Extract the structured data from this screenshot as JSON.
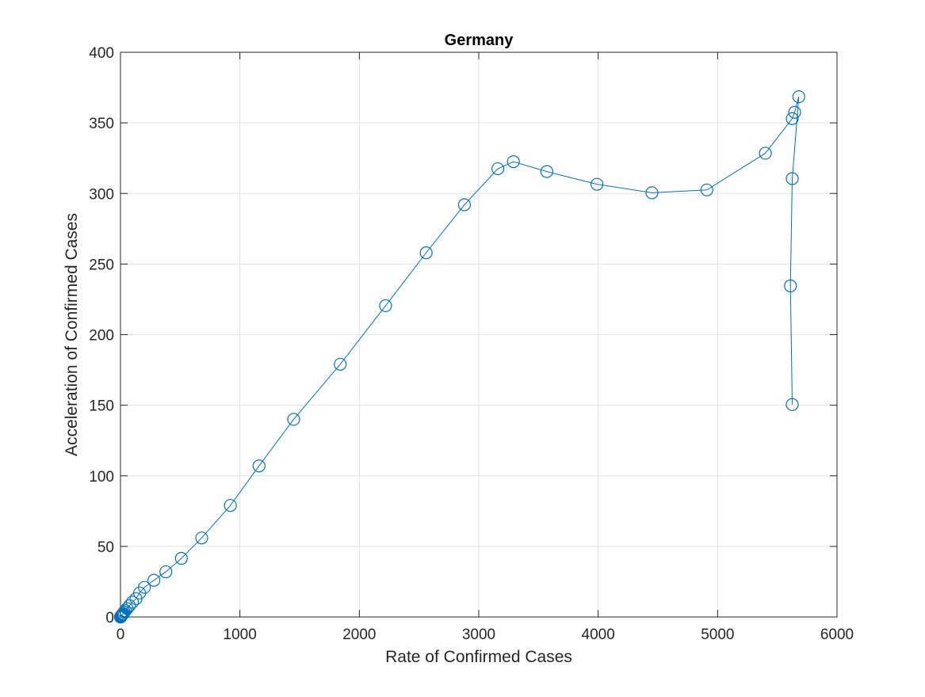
{
  "chart_data": {
    "type": "line",
    "title": "Germany",
    "xlabel": "Rate of Confirmed Cases",
    "ylabel": "Acceleration of Confirmed Cases",
    "xlim": [
      0,
      6000
    ],
    "ylim": [
      0,
      400
    ],
    "xticks": [
      0,
      1000,
      2000,
      3000,
      4000,
      5000,
      6000
    ],
    "yticks": [
      0,
      50,
      100,
      150,
      200,
      250,
      300,
      350,
      400
    ],
    "xtick_labels": [
      "0",
      "1000",
      "2000",
      "3000",
      "4000",
      "5000",
      "6000"
    ],
    "ytick_labels": [
      "0",
      "50",
      "100",
      "150",
      "200",
      "250",
      "300",
      "350",
      "400"
    ],
    "grid": true,
    "marker": "circle",
    "series": [
      {
        "color": "#0072bd",
        "x": [
          0,
          1,
          2,
          3,
          4,
          6,
          8,
          10,
          12,
          15,
          20,
          25,
          30,
          40,
          55,
          75,
          100,
          130,
          160,
          200,
          280,
          380,
          510,
          680,
          920,
          1160,
          1450,
          1840,
          2220,
          2560,
          2880,
          3160,
          3290,
          3570,
          3990,
          4450,
          4910,
          5400,
          5625,
          5645,
          5680,
          5625,
          5610,
          5625
        ],
        "y": [
          0,
          0,
          0.2,
          0.3,
          0.5,
          0.7,
          0.9,
          1.1,
          1.3,
          1.6,
          2,
          2.5,
          3.5,
          4.5,
          6,
          8,
          10.5,
          13,
          17,
          21,
          26,
          32,
          41.5,
          56,
          79,
          107,
          140,
          179,
          220.5,
          258,
          292,
          317.5,
          322.5,
          315.5,
          306.5,
          300.5,
          302.5,
          328.5,
          353,
          357.5,
          368.5,
          310.5,
          234.5,
          150.5
        ]
      }
    ]
  }
}
